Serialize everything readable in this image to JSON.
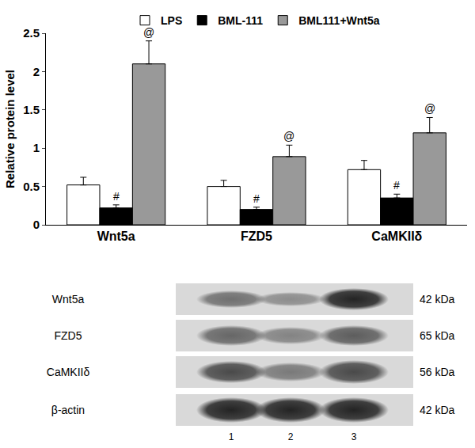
{
  "chart_data": {
    "type": "bar",
    "categories": [
      "Wnt5a",
      "FZD5",
      "CaMKIIδ"
    ],
    "series": [
      {
        "name": "LPS",
        "color": "#ffffff",
        "values": [
          0.52,
          0.5,
          0.72
        ],
        "errors": [
          0.1,
          0.08,
          0.12
        ]
      },
      {
        "name": "BML-111",
        "color": "#000000",
        "values": [
          0.22,
          0.2,
          0.35
        ],
        "errors": [
          0.04,
          0.03,
          0.05
        ],
        "annotations": [
          "#",
          "#",
          "#"
        ]
      },
      {
        "name": "BML111+Wnt5a",
        "color": "#999999",
        "values": [
          2.1,
          0.89,
          1.2
        ],
        "errors": [
          0.3,
          0.15,
          0.2
        ],
        "annotations": [
          "@",
          "@",
          "@"
        ]
      }
    ],
    "y_label": "Relative protein level",
    "ylim": [
      0,
      2.5
    ],
    "yticks": [
      0,
      0.5,
      1,
      1.5,
      2,
      2.5
    ],
    "legend": "top"
  },
  "blot": {
    "rows": [
      {
        "label": "Wnt5a",
        "size": "42 kDa"
      },
      {
        "label": "FZD5",
        "size": "65 kDa"
      },
      {
        "label": "CaMKIIδ",
        "size": "56 kDa"
      },
      {
        "label": "β-actin",
        "size": "42 kDa"
      }
    ],
    "lanes": [
      "1",
      "2",
      "3"
    ]
  }
}
